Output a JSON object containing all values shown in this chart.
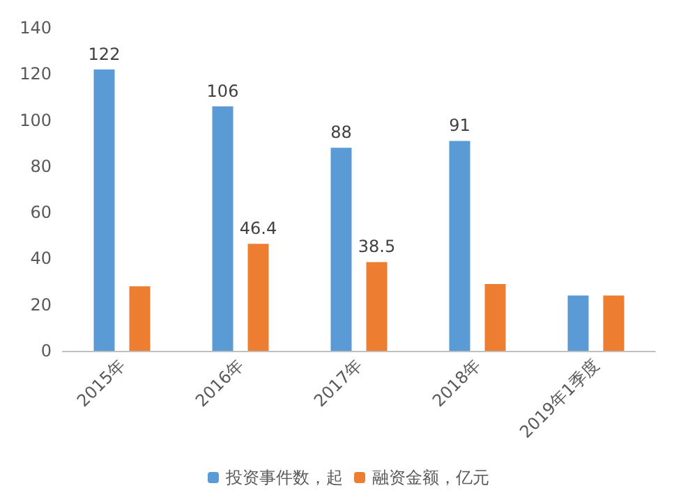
{
  "chart_data": {
    "type": "bar",
    "categories": [
      "2015年",
      "2016年",
      "2017年",
      "2018年",
      "2019年1季度"
    ],
    "series": [
      {
        "name": "投资事件数，起",
        "color": "#5b9bd5",
        "values": [
          122,
          106,
          88,
          91,
          24
        ],
        "value_labels": [
          "122",
          "106",
          "88",
          "91",
          null
        ]
      },
      {
        "name": "融资金额，亿元",
        "color": "#ed7d31",
        "values": [
          28,
          46.4,
          38.5,
          29,
          24
        ],
        "value_labels": [
          null,
          "46.4",
          "38.5",
          null,
          null
        ]
      }
    ],
    "ylim": [
      0,
      140
    ],
    "yticks": [
      0,
      20,
      40,
      60,
      80,
      100,
      120,
      140
    ],
    "grid": false,
    "legend": "bottom"
  }
}
